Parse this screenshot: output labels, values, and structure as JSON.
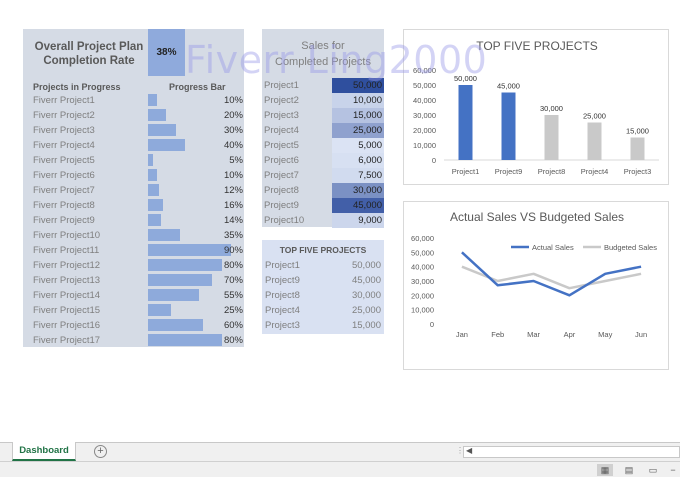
{
  "progress_panel": {
    "title_line1": "Overall Project Plan",
    "title_line2": "Completion Rate",
    "rate": "38%",
    "col_projects": "Projects in Progress",
    "col_bar": "Progress Bar",
    "rows": [
      {
        "name": "Fiverr Project1",
        "pct": "10%",
        "value": 10
      },
      {
        "name": "Fiverr Project2",
        "pct": "20%",
        "value": 20
      },
      {
        "name": "Fiverr Project3",
        "pct": "30%",
        "value": 30
      },
      {
        "name": "Fiverr Project4",
        "pct": "40%",
        "value": 40
      },
      {
        "name": "Fiverr Project5",
        "pct": "5%",
        "value": 5
      },
      {
        "name": "Fiverr Project6",
        "pct": "10%",
        "value": 10
      },
      {
        "name": "Fiverr Project7",
        "pct": "12%",
        "value": 12
      },
      {
        "name": "Fiverr Project8",
        "pct": "16%",
        "value": 16
      },
      {
        "name": "Fiverr Project9",
        "pct": "14%",
        "value": 14
      },
      {
        "name": "Fiverr Project10",
        "pct": "35%",
        "value": 35
      },
      {
        "name": "Fiverr Project11",
        "pct": "90%",
        "value": 90
      },
      {
        "name": "Fiverr Project12",
        "pct": "80%",
        "value": 80
      },
      {
        "name": "Fiverr Project13",
        "pct": "70%",
        "value": 70
      },
      {
        "name": "Fiverr Project14",
        "pct": "55%",
        "value": 55
      },
      {
        "name": "Fiverr Project15",
        "pct": "25%",
        "value": 25
      },
      {
        "name": "Fiverr Project16",
        "pct": "60%",
        "value": 60
      },
      {
        "name": "Fiverr Project17",
        "pct": "80%",
        "value": 80
      }
    ],
    "bar_color": "#8eaadb",
    "rate_box_color": "#8faadc"
  },
  "sales_panel": {
    "title_line1": "Sales for",
    "title_line2": "Completed Projects",
    "rows": [
      {
        "name": "Project1",
        "value_text": "50,000",
        "value": 50000
      },
      {
        "name": "Project2",
        "value_text": "10,000",
        "value": 10000
      },
      {
        "name": "Project3",
        "value_text": "15,000",
        "value": 15000
      },
      {
        "name": "Project4",
        "value_text": "25,000",
        "value": 25000
      },
      {
        "name": "Project5",
        "value_text": "5,000",
        "value": 5000
      },
      {
        "name": "Project6",
        "value_text": "6,000",
        "value": 6000
      },
      {
        "name": "Project7",
        "value_text": "7,500",
        "value": 7500
      },
      {
        "name": "Project8",
        "value_text": "30,000",
        "value": 30000
      },
      {
        "name": "Project9",
        "value_text": "45,000",
        "value": 45000
      },
      {
        "name": "Project10",
        "value_text": "9,000",
        "value": 9000
      }
    ],
    "heat_low_color": "#dbe3f4",
    "heat_high_color": "#2f4f9e"
  },
  "top5_table": {
    "title": "TOP FIVE PROJECTS",
    "rows": [
      {
        "name": "Project1",
        "value_text": "50,000"
      },
      {
        "name": "Project9",
        "value_text": "45,000"
      },
      {
        "name": "Project8",
        "value_text": "30,000"
      },
      {
        "name": "Project4",
        "value_text": "25,000"
      },
      {
        "name": "Project3",
        "value_text": "15,000"
      }
    ]
  },
  "watermark": "Fiverr Ling2000",
  "chart_data": [
    {
      "type": "bar",
      "title": "TOP FIVE PROJECTS",
      "categories": [
        "Project1",
        "Project9",
        "Project8",
        "Project4",
        "Project3"
      ],
      "values": [
        50000,
        45000,
        30000,
        25000,
        15000
      ],
      "value_labels": [
        "50,000",
        "45,000",
        "30,000",
        "25,000",
        "15,000"
      ],
      "yticks": [
        "0",
        "10,000",
        "20,000",
        "30,000",
        "40,000",
        "50,000",
        "60,000"
      ],
      "ylim": [
        0,
        60000
      ],
      "bar_colors": [
        "#4472c4",
        "#4472c4",
        "#c9c9c9",
        "#c9c9c9",
        "#c9c9c9"
      ],
      "grid": false
    },
    {
      "type": "line",
      "title": "Actual Sales VS Budgeted Sales",
      "categories": [
        "Jan",
        "Feb",
        "Mar",
        "Apr",
        "May",
        "Jun"
      ],
      "series": [
        {
          "name": "Actual Sales",
          "values": [
            50000,
            27000,
            30000,
            20000,
            35000,
            40000
          ],
          "color": "#4472c4"
        },
        {
          "name": "Budgeted Sales",
          "values": [
            40000,
            30000,
            35000,
            25000,
            30000,
            35000
          ],
          "color": "#c9c9c9"
        }
      ],
      "yticks": [
        "0",
        "10,000",
        "20,000",
        "30,000",
        "40,000",
        "50,000",
        "60,000"
      ],
      "ylim": [
        0,
        60000
      ],
      "legend": "top-right",
      "grid": false
    }
  ],
  "excel": {
    "sheet_tab": "Dashboard",
    "add_sheet": "+",
    "tab_color": "#217346"
  }
}
